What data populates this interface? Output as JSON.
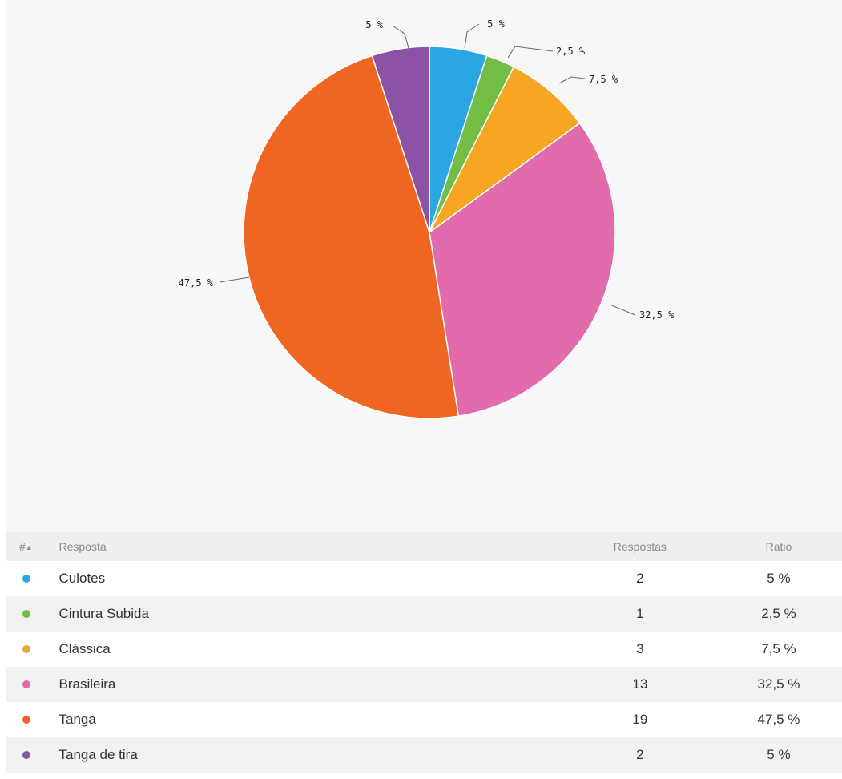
{
  "chart_data": {
    "type": "pie",
    "categories": [
      "Culotes",
      "Cintura Subida",
      "Clássica",
      "Brasileira",
      "Tanga",
      "Tanga de tira"
    ],
    "values": [
      5,
      2.5,
      7.5,
      32.5,
      47.5,
      5
    ],
    "slice_labels": [
      "5 %",
      "2,5 %",
      "7,5 %",
      "32,5 %",
      "47,5 %",
      "5 %"
    ],
    "colors": [
      "#2aa7e2",
      "#72be44",
      "#f7a623",
      "#e26bad",
      "#ef6522",
      "#8c52a6"
    ]
  },
  "table": {
    "headers": {
      "index": "#",
      "sort_icon": "▲",
      "answer": "Resposta",
      "count": "Respostas",
      "ratio": "Ratio"
    },
    "rows": [
      {
        "answer": "Culotes",
        "count": "2",
        "ratio": "5 %",
        "color": "#2aa7e2"
      },
      {
        "answer": "Cintura Subida",
        "count": "1",
        "ratio": "2,5 %",
        "color": "#72be44"
      },
      {
        "answer": "Clássica",
        "count": "3",
        "ratio": "7,5 %",
        "color": "#e2a93a"
      },
      {
        "answer": "Brasileira",
        "count": "13",
        "ratio": "32,5 %",
        "color": "#e26bad"
      },
      {
        "answer": "Tanga",
        "count": "19",
        "ratio": "47,5 %",
        "color": "#ef6522"
      },
      {
        "answer": "Tanga de tira",
        "count": "2",
        "ratio": "5 %",
        "color": "#8c52a6"
      }
    ]
  }
}
